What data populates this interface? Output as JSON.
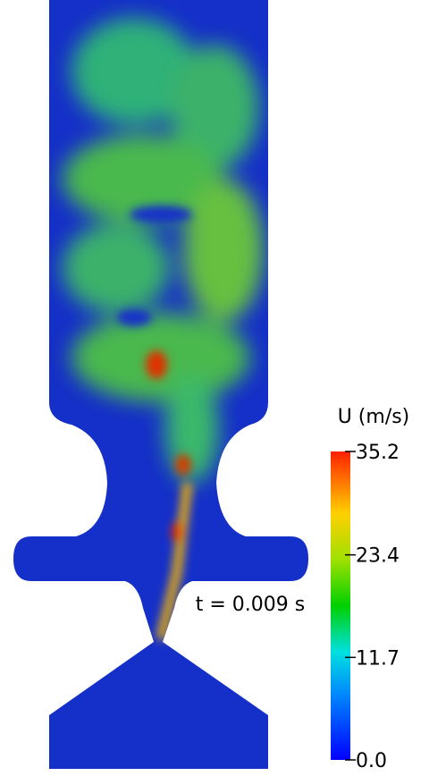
{
  "colorbar": {
    "title": "U (m/s)",
    "lim": [
      0,
      35.2
    ],
    "ticks": [
      {
        "value": 0,
        "label": "0.0"
      },
      11.7,
      23.4,
      35.2
    ]
  },
  "annotation": "t = 0.009 s"
}
